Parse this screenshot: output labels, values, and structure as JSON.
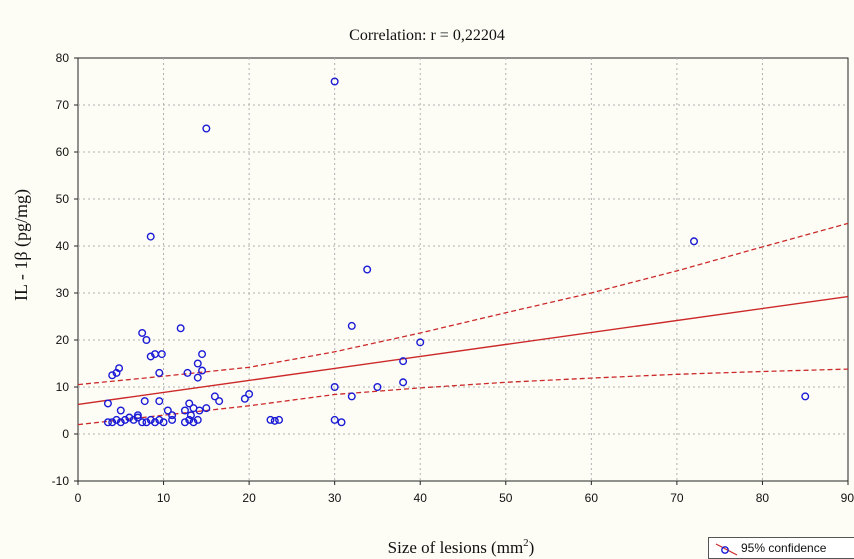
{
  "chart_data": {
    "type": "scatter",
    "title": "Correlation: r = 0,22204",
    "xlabel": "Size of lesions (mm",
    "xlabel_sup": "2",
    "xlabel_end": ")",
    "ylabel": "IL - 1β  (pg/mg)",
    "xlim": [
      0,
      90
    ],
    "ylim": [
      -10,
      80
    ],
    "x_ticks": [
      0,
      10,
      20,
      30,
      40,
      50,
      60,
      70,
      80,
      90
    ],
    "y_ticks": [
      -10,
      0,
      10,
      20,
      30,
      40,
      50,
      60,
      70,
      80
    ],
    "x_tick_labels": [
      "0",
      "10",
      "20",
      "30",
      "40",
      "50",
      "60",
      "70",
      "80",
      "90"
    ],
    "y_tick_labels": [
      "-10",
      "0",
      "10",
      "20",
      "30",
      "40",
      "50",
      "60",
      "70",
      "80"
    ],
    "grid": true,
    "legend_position": "bottom-right",
    "legend_label": "95% confidence",
    "colors": {
      "points": "#1b1bd6",
      "fit": "#cc2a2a",
      "background": "#fdfdf6",
      "grid": "#b0b0b0"
    },
    "regression": {
      "intercept": 6.3,
      "slope": 0.255
    },
    "confidence_band": {
      "x": [
        0,
        10,
        20,
        30,
        40,
        50,
        60,
        70,
        80,
        90
      ],
      "upper": [
        10.5,
        12.3,
        14.2,
        17.5,
        21.5,
        25.8,
        30.0,
        34.7,
        39.8,
        44.8
      ],
      "lower": [
        2.0,
        4.0,
        6.0,
        8.4,
        9.8,
        11.0,
        11.9,
        12.7,
        13.3,
        13.8
      ]
    },
    "points": [
      [
        3.5,
        2.5
      ],
      [
        4,
        2.5
      ],
      [
        4.5,
        3
      ],
      [
        5,
        2.5
      ],
      [
        5.5,
        3
      ],
      [
        6,
        3.5
      ],
      [
        6.5,
        3
      ],
      [
        7,
        3.5
      ],
      [
        7.5,
        2.5
      ],
      [
        8,
        2.5
      ],
      [
        8.5,
        3
      ],
      [
        9,
        2.5
      ],
      [
        9.5,
        3
      ],
      [
        10,
        2.5
      ],
      [
        11,
        3
      ],
      [
        12.5,
        2.5
      ],
      [
        13,
        3
      ],
      [
        13.5,
        2.5
      ],
      [
        14,
        3
      ],
      [
        3.5,
        6.5
      ],
      [
        4,
        12.5
      ],
      [
        4.5,
        13
      ],
      [
        4.8,
        14
      ],
      [
        5,
        5
      ],
      [
        7,
        4
      ],
      [
        7.8,
        7
      ],
      [
        7.5,
        21.5
      ],
      [
        8,
        20
      ],
      [
        8.5,
        16.5
      ],
      [
        8.5,
        42
      ],
      [
        9,
        17
      ],
      [
        9.5,
        13
      ],
      [
        9.5,
        7
      ],
      [
        9.8,
        17
      ],
      [
        10.5,
        5
      ],
      [
        11,
        4
      ],
      [
        12,
        22.5
      ],
      [
        12.5,
        5
      ],
      [
        12.8,
        13
      ],
      [
        13,
        6.5
      ],
      [
        13.2,
        4
      ],
      [
        13.5,
        5.5
      ],
      [
        14,
        12
      ],
      [
        14,
        15
      ],
      [
        14.5,
        17
      ],
      [
        14.5,
        13.5
      ],
      [
        14.2,
        5
      ],
      [
        15,
        5.5
      ],
      [
        15,
        65
      ],
      [
        16,
        8
      ],
      [
        16.5,
        7
      ],
      [
        19.5,
        7.5
      ],
      [
        20,
        8.5
      ],
      [
        22.5,
        3
      ],
      [
        23,
        2.8
      ],
      [
        23.5,
        3
      ],
      [
        30,
        75
      ],
      [
        30,
        10
      ],
      [
        30,
        3
      ],
      [
        30.8,
        2.5
      ],
      [
        32,
        23
      ],
      [
        32,
        8
      ],
      [
        33.8,
        35
      ],
      [
        35,
        10
      ],
      [
        38,
        11
      ],
      [
        38,
        15.5
      ],
      [
        40,
        19.5
      ],
      [
        72,
        41
      ],
      [
        85,
        8
      ]
    ]
  }
}
